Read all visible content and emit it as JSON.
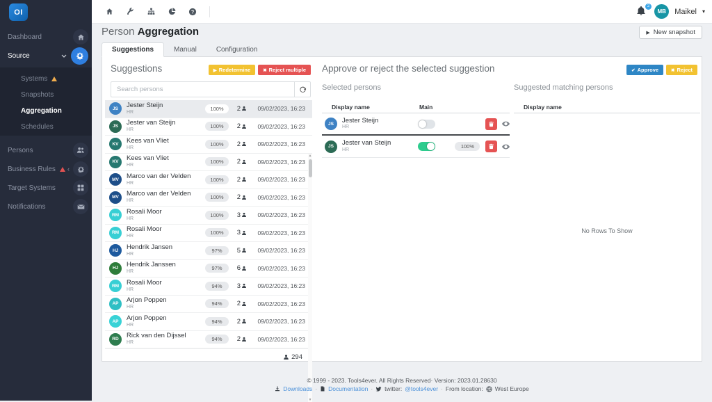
{
  "sidebar": {
    "logo_text": "OI",
    "items": [
      {
        "label": "Dashboard",
        "icon": "home"
      },
      {
        "label": "Source",
        "icon": "gear",
        "active": true,
        "expanded": true
      },
      {
        "label": "Persons",
        "icon": "users"
      },
      {
        "label": "Business Rules",
        "icon": "gear",
        "warning": true
      },
      {
        "label": "Target Systems",
        "icon": "grid"
      },
      {
        "label": "Notifications",
        "icon": "envelope"
      }
    ],
    "source_submenu": [
      {
        "label": "Systems",
        "warning": true
      },
      {
        "label": "Snapshots"
      },
      {
        "label": "Aggregation",
        "active": true
      },
      {
        "label": "Schedules"
      }
    ]
  },
  "topbar": {
    "icons": [
      "home",
      "wrench",
      "sitemap",
      "pie-chart",
      "help"
    ],
    "notification_badge": "2",
    "user_initials": "MB",
    "user_name": "Maikel"
  },
  "page": {
    "title_prefix": "Person",
    "title": "Aggregation",
    "new_snapshot_label": "New snapshot"
  },
  "tabs": [
    {
      "label": "Suggestions",
      "active": true
    },
    {
      "label": "Manual"
    },
    {
      "label": "Configuration"
    }
  ],
  "suggestions": {
    "heading": "Suggestions",
    "redetermine_label": "Redetermine",
    "reject_multiple_label": "Reject multiple",
    "search_placeholder": "Search persons",
    "total_count": "294",
    "rows": [
      {
        "initials": "JS",
        "name": "Jester Steijn",
        "dept": "HR",
        "color": "#3e82c4",
        "match": "100%",
        "count": "2",
        "date": "09/02/2023, 16:23",
        "selected": true
      },
      {
        "initials": "JS",
        "name": "Jester van Steijn",
        "dept": "HR",
        "color": "#2c6b55",
        "match": "100%",
        "count": "2",
        "date": "09/02/2023, 16:23"
      },
      {
        "initials": "KV",
        "name": "Kees van Vliet",
        "dept": "HR",
        "color": "#267870",
        "match": "100%",
        "count": "2",
        "date": "09/02/2023, 16:23"
      },
      {
        "initials": "KV",
        "name": "Kees van Vliet",
        "dept": "HR",
        "color": "#267870",
        "match": "100%",
        "count": "2",
        "date": "09/02/2023, 16:23"
      },
      {
        "initials": "MV",
        "name": "Marco van der Velden",
        "dept": "HR",
        "color": "#1d4e89",
        "match": "100%",
        "count": "2",
        "date": "09/02/2023, 16:23"
      },
      {
        "initials": "MV",
        "name": "Marco van der Velden",
        "dept": "HR",
        "color": "#1d4e89",
        "match": "100%",
        "count": "2",
        "date": "09/02/2023, 16:23"
      },
      {
        "initials": "RM",
        "name": "Rosali Moor",
        "dept": "HR",
        "color": "#38cfd4",
        "match": "100%",
        "count": "3",
        "date": "09/02/2023, 16:23"
      },
      {
        "initials": "RM",
        "name": "Rosali Moor",
        "dept": "HR",
        "color": "#38cfd4",
        "match": "100%",
        "count": "3",
        "date": "09/02/2023, 16:23"
      },
      {
        "initials": "HJ",
        "name": "Hendrik Jansen",
        "dept": "HR",
        "color": "#1e5a9e",
        "match": "97%",
        "count": "5",
        "date": "09/02/2023, 16:23"
      },
      {
        "initials": "HJ",
        "name": "Hendrik Janssen",
        "dept": "HR",
        "color": "#2e7d3a",
        "match": "97%",
        "count": "6",
        "date": "09/02/2023, 16:23"
      },
      {
        "initials": "RM",
        "name": "Rosali Moor",
        "dept": "HR",
        "color": "#38cfd4",
        "match": "94%",
        "count": "3",
        "date": "09/02/2023, 16:23"
      },
      {
        "initials": "AP",
        "name": "Arjon Poppen",
        "dept": "HR",
        "color": "#2fbfc4",
        "match": "94%",
        "count": "2",
        "date": "09/02/2023, 16:23"
      },
      {
        "initials": "AP",
        "name": "Arjon Poppen",
        "dept": "HR",
        "color": "#38d2d6",
        "match": "94%",
        "count": "2",
        "date": "09/02/2023, 16:23"
      },
      {
        "initials": "RD",
        "name": "Rick van den Dijssel",
        "dept": "HR",
        "color": "#2e7d4f",
        "match": "94%",
        "count": "2",
        "date": "09/02/2023, 16:23"
      }
    ]
  },
  "approve_panel": {
    "heading": "Approve or reject the selected suggestion",
    "approve_label": "Approve",
    "reject_label": "Reject",
    "selected_persons": {
      "heading": "Selected persons",
      "col_display_name": "Display name",
      "col_main": "Main",
      "rows": [
        {
          "initials": "JS",
          "name": "Jester Steijn",
          "dept": "HR",
          "color": "#3e82c4",
          "main": false,
          "match": ""
        },
        {
          "initials": "JS",
          "name": "Jester van Steijn",
          "dept": "HR",
          "color": "#2c6b55",
          "main": true,
          "match": "100%"
        }
      ]
    },
    "suggested_matching": {
      "heading": "Suggested matching persons",
      "col_display_name": "Display name",
      "empty_text": "No Rows To Show"
    }
  },
  "footer": {
    "copyright": "© 1999 - 2023. Tools4ever. All Rights Reserved· Version: 2023.01.28630",
    "downloads_label": "Downloads",
    "documentation_label": "Documentation",
    "twitter_label": "twitter:",
    "twitter_handle": "@tools4ever",
    "location_label": "From location:",
    "location_value": "West Europe"
  },
  "colors": {
    "accent_blue": "#2e86c5",
    "warning_yellow": "#f2c231",
    "danger_red": "#e55353",
    "toggle_green": "#2ecc8e",
    "sidebar_bg": "#262c3b"
  }
}
